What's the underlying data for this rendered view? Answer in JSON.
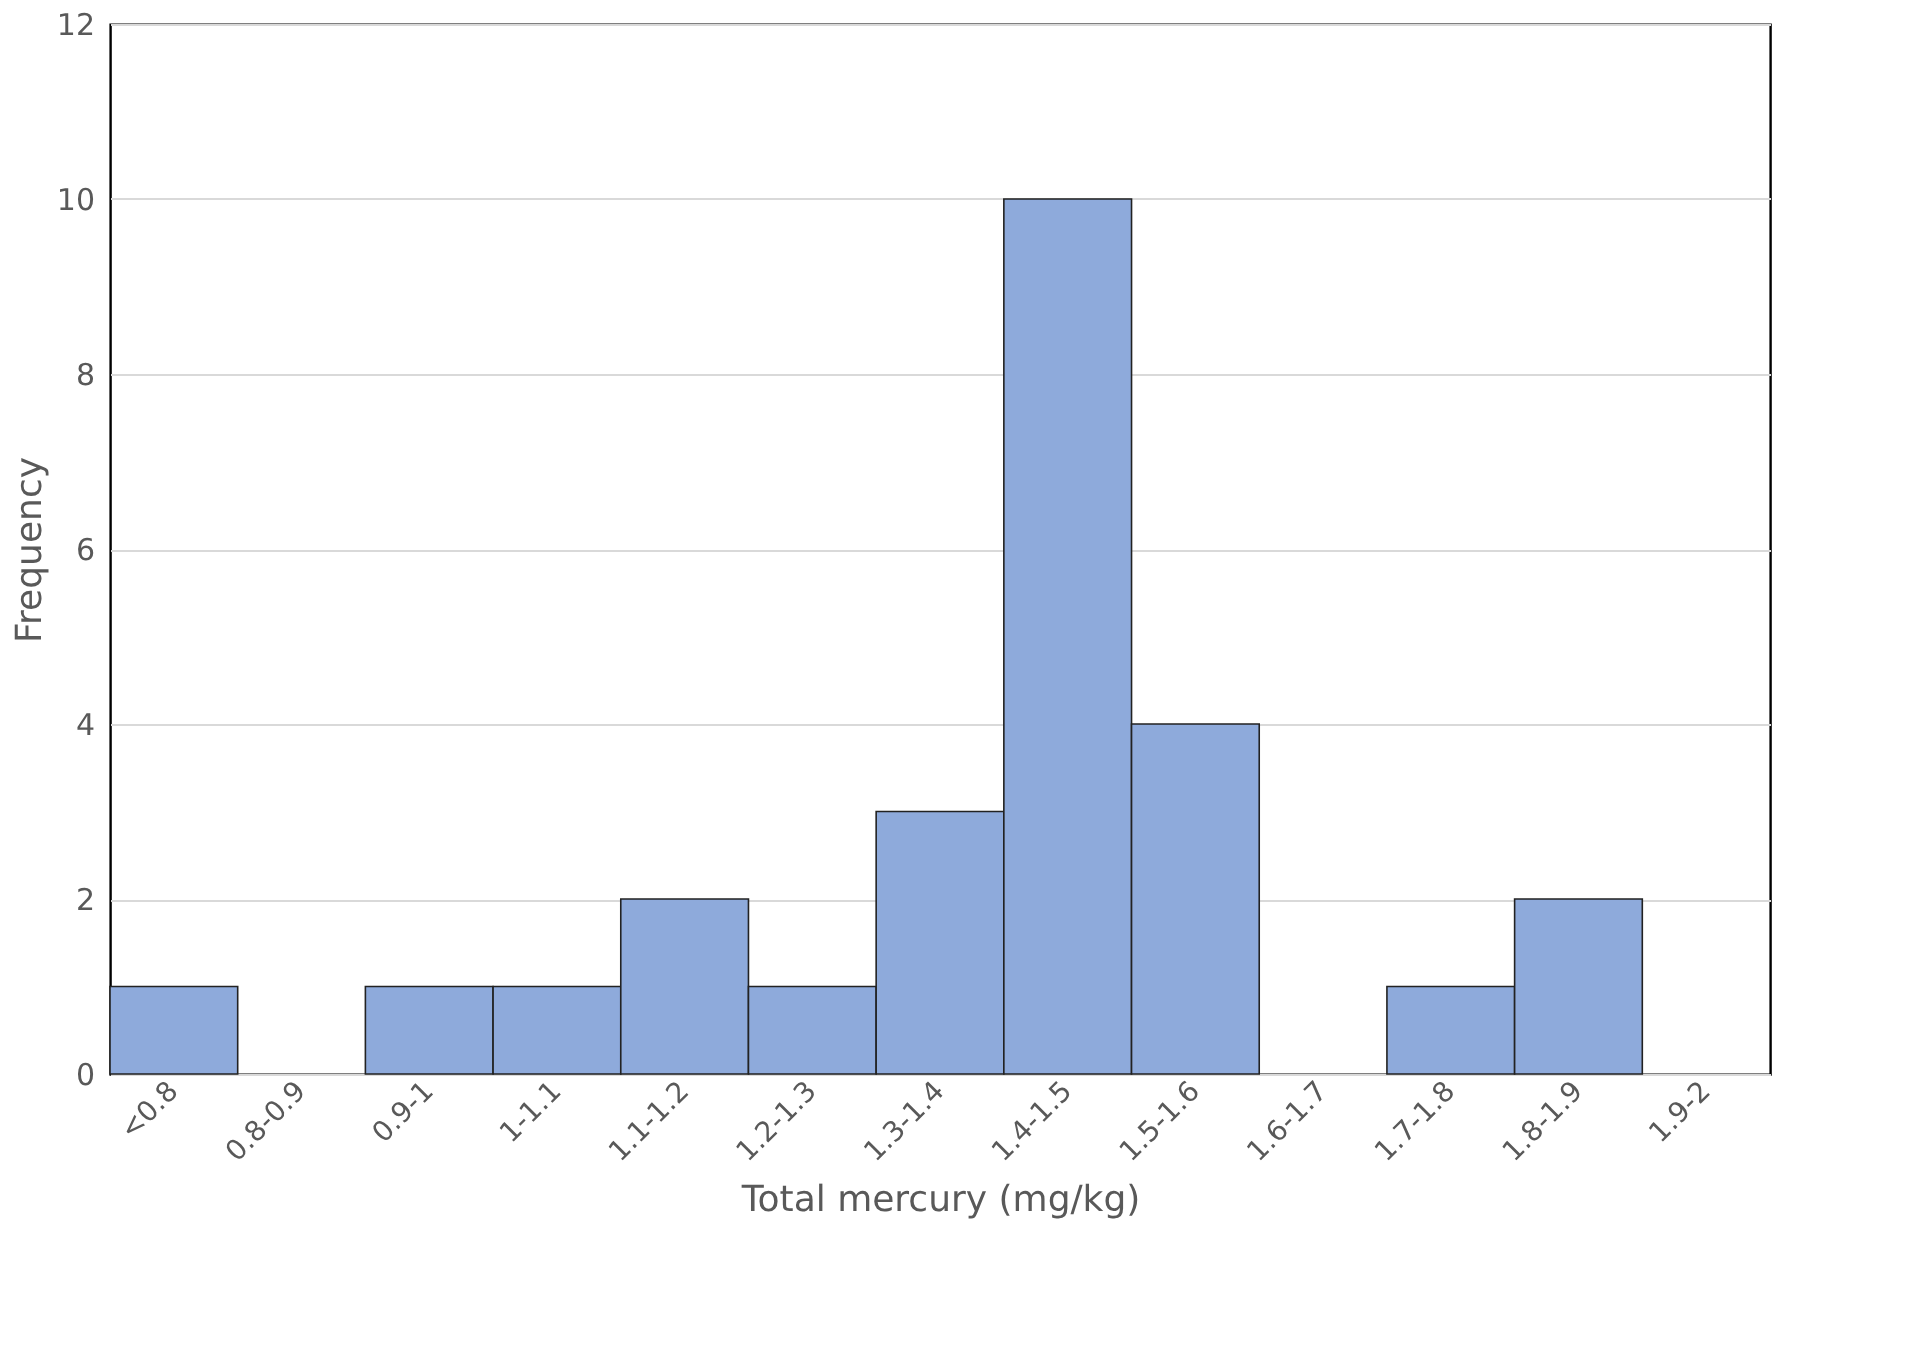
{
  "chart_data": {
    "type": "bar",
    "xlabel": "Total mercury (mg/kg)",
    "ylabel": "Frequency",
    "categories": [
      "<0.8",
      "0.8-0.9",
      "0.9-1",
      "1-1.1",
      "1.1-1.2",
      "1.2-1.3",
      "1.3-1.4",
      "1.4-1.5",
      "1.5-1.6",
      "1.6-1.7",
      "1.7-1.8",
      "1.8-1.9",
      "1.9-2"
    ],
    "values": [
      1,
      0,
      1,
      1,
      2,
      1,
      3,
      10,
      4,
      0,
      1,
      2,
      0
    ],
    "color": "#8eaadb",
    "ylim": [
      0,
      12
    ],
    "yticks": [
      0,
      2,
      4,
      6,
      8,
      10,
      12
    ],
    "grid": "y"
  }
}
